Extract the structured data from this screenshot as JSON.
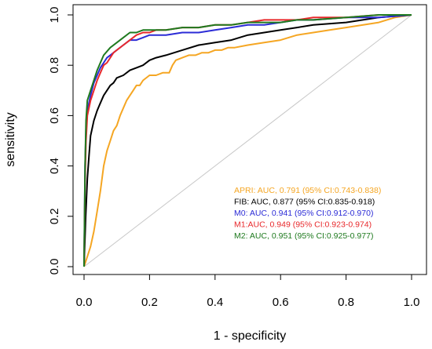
{
  "chart_data": {
    "type": "line",
    "title": "",
    "xlabel": "1 - specificity",
    "ylabel": "sensitivity",
    "xlim": [
      0,
      1
    ],
    "ylim": [
      0,
      1
    ],
    "xticks": [
      "0.0",
      "0.2",
      "0.4",
      "0.6",
      "0.8",
      "1.0"
    ],
    "yticks": [
      "0.0",
      "0.2",
      "0.4",
      "0.6",
      "0.8",
      "1.0"
    ],
    "grid": false,
    "legend_position": "bottom-right",
    "reference_line": {
      "color": "#c8c8c8"
    },
    "series": [
      {
        "name": "APRI",
        "legend": [
          "APRI: AUC, 0.791",
          "(95% CI:0.743-0.838)"
        ],
        "color": "#f5a623",
        "x": [
          0,
          0.01,
          0.02,
          0.03,
          0.04,
          0.05,
          0.06,
          0.07,
          0.08,
          0.09,
          0.1,
          0.11,
          0.12,
          0.13,
          0.14,
          0.15,
          0.16,
          0.17,
          0.18,
          0.2,
          0.22,
          0.24,
          0.26,
          0.27,
          0.28,
          0.3,
          0.32,
          0.34,
          0.36,
          0.38,
          0.4,
          0.42,
          0.44,
          0.46,
          0.5,
          0.55,
          0.6,
          0.65,
          0.7,
          0.75,
          0.8,
          0.9,
          0.95,
          1.0
        ],
        "y": [
          0,
          0.04,
          0.08,
          0.14,
          0.22,
          0.3,
          0.4,
          0.46,
          0.5,
          0.54,
          0.56,
          0.6,
          0.63,
          0.66,
          0.68,
          0.7,
          0.72,
          0.72,
          0.74,
          0.76,
          0.76,
          0.77,
          0.77,
          0.8,
          0.82,
          0.83,
          0.84,
          0.84,
          0.85,
          0.85,
          0.86,
          0.86,
          0.87,
          0.87,
          0.88,
          0.89,
          0.9,
          0.92,
          0.93,
          0.94,
          0.95,
          0.97,
          0.99,
          1.0
        ]
      },
      {
        "name": "FIB",
        "legend": [
          "FIB: AUC, 0.877",
          "(95% CI:0.835-0.918)"
        ],
        "color": "#000000",
        "x": [
          0,
          0.005,
          0.01,
          0.015,
          0.02,
          0.03,
          0.04,
          0.05,
          0.06,
          0.07,
          0.08,
          0.09,
          0.1,
          0.12,
          0.14,
          0.16,
          0.18,
          0.2,
          0.22,
          0.25,
          0.3,
          0.35,
          0.4,
          0.45,
          0.5,
          0.55,
          0.6,
          0.65,
          0.7,
          0.8,
          0.9,
          1.0
        ],
        "y": [
          0,
          0.2,
          0.35,
          0.44,
          0.52,
          0.58,
          0.62,
          0.65,
          0.68,
          0.7,
          0.72,
          0.73,
          0.75,
          0.76,
          0.78,
          0.79,
          0.8,
          0.82,
          0.83,
          0.84,
          0.86,
          0.88,
          0.89,
          0.9,
          0.92,
          0.93,
          0.94,
          0.95,
          0.96,
          0.97,
          0.99,
          1.0
        ]
      },
      {
        "name": "M0",
        "legend": [
          "M0: AUC, 0.941",
          "(95% CI:0.912-0.970)"
        ],
        "color": "#2b2bd6",
        "x": [
          0,
          0.003,
          0.006,
          0.01,
          0.02,
          0.03,
          0.04,
          0.05,
          0.06,
          0.07,
          0.08,
          0.1,
          0.12,
          0.14,
          0.16,
          0.18,
          0.2,
          0.25,
          0.3,
          0.35,
          0.4,
          0.45,
          0.5,
          0.55,
          0.6,
          0.65,
          0.7,
          0.8,
          0.9,
          1.0
        ],
        "y": [
          0,
          0.4,
          0.55,
          0.62,
          0.68,
          0.73,
          0.76,
          0.79,
          0.81,
          0.83,
          0.84,
          0.86,
          0.88,
          0.9,
          0.9,
          0.91,
          0.92,
          0.92,
          0.93,
          0.93,
          0.94,
          0.95,
          0.96,
          0.96,
          0.97,
          0.98,
          0.98,
          0.99,
          0.99,
          1.0
        ]
      },
      {
        "name": "M1",
        "legend": [
          "M1:AUC, 0.949",
          "(95% CI:0.923-0.974)"
        ],
        "color": "#e8282b",
        "x": [
          0,
          0.003,
          0.006,
          0.01,
          0.02,
          0.03,
          0.04,
          0.05,
          0.06,
          0.07,
          0.08,
          0.09,
          0.1,
          0.12,
          0.14,
          0.16,
          0.18,
          0.2,
          0.22,
          0.25,
          0.3,
          0.35,
          0.4,
          0.45,
          0.5,
          0.55,
          0.6,
          0.65,
          0.7,
          0.8,
          0.9,
          1.0
        ],
        "y": [
          0,
          0.35,
          0.5,
          0.6,
          0.66,
          0.7,
          0.74,
          0.77,
          0.8,
          0.81,
          0.83,
          0.85,
          0.86,
          0.88,
          0.9,
          0.92,
          0.93,
          0.93,
          0.94,
          0.94,
          0.95,
          0.95,
          0.96,
          0.96,
          0.97,
          0.98,
          0.98,
          0.98,
          0.99,
          0.99,
          1.0,
          1.0
        ]
      },
      {
        "name": "M2",
        "legend": [
          "M2: AUC, 0.951",
          "(95% CI:0.925-0.977)"
        ],
        "color": "#1f7a1f",
        "x": [
          0,
          0.003,
          0.006,
          0.01,
          0.02,
          0.03,
          0.04,
          0.05,
          0.06,
          0.08,
          0.1,
          0.12,
          0.14,
          0.16,
          0.18,
          0.2,
          0.25,
          0.3,
          0.35,
          0.4,
          0.45,
          0.5,
          0.55,
          0.6,
          0.65,
          0.7,
          0.8,
          0.9,
          1.0
        ],
        "y": [
          0,
          0.4,
          0.58,
          0.66,
          0.7,
          0.74,
          0.78,
          0.81,
          0.84,
          0.87,
          0.89,
          0.91,
          0.93,
          0.93,
          0.94,
          0.94,
          0.94,
          0.95,
          0.95,
          0.96,
          0.96,
          0.97,
          0.97,
          0.97,
          0.98,
          0.98,
          0.99,
          1.0,
          1.0
        ]
      }
    ]
  }
}
